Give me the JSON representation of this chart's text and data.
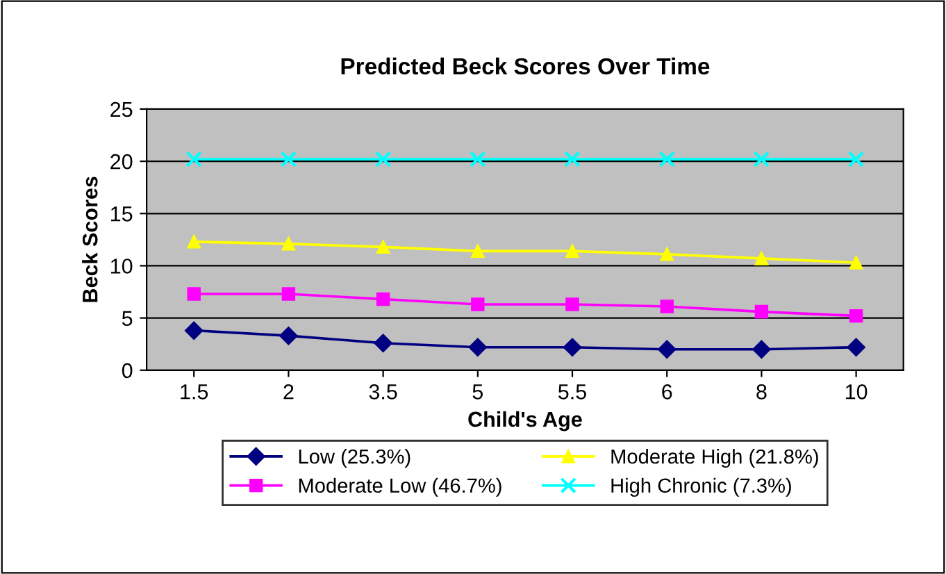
{
  "chart_data": {
    "type": "line",
    "title": "Predicted Beck Scores Over Time",
    "xlabel": "Child's Age",
    "ylabel": "Beck Scores",
    "categories": [
      "1.5",
      "2",
      "3.5",
      "5",
      "5.5",
      "6",
      "8",
      "10"
    ],
    "series": [
      {
        "name": "Low (25.3%)",
        "color": "#000080",
        "marker": "diamond",
        "values": [
          3.8,
          3.3,
          2.6,
          2.2,
          2.2,
          2.0,
          2.0,
          2.2
        ]
      },
      {
        "name": "Moderate Low (46.7%)",
        "color": "#ff00ff",
        "marker": "square",
        "values": [
          7.3,
          7.3,
          6.8,
          6.3,
          6.3,
          6.1,
          5.6,
          5.2
        ]
      },
      {
        "name": "Moderate High (21.8%)",
        "color": "#ffff00",
        "marker": "triangle",
        "values": [
          12.3,
          12.1,
          11.8,
          11.4,
          11.4,
          11.1,
          10.7,
          10.3
        ]
      },
      {
        "name": "High Chronic (7.3%)",
        "color": "#00ffff",
        "marker": "cross",
        "values": [
          20.2,
          20.2,
          20.2,
          20.2,
          20.2,
          20.2,
          20.2,
          20.2
        ]
      }
    ],
    "ylim": [
      0,
      25
    ],
    "yticks": [
      0,
      5,
      10,
      15,
      20,
      25
    ],
    "grid": "y",
    "legend": "bottom",
    "line_style": "solid"
  }
}
